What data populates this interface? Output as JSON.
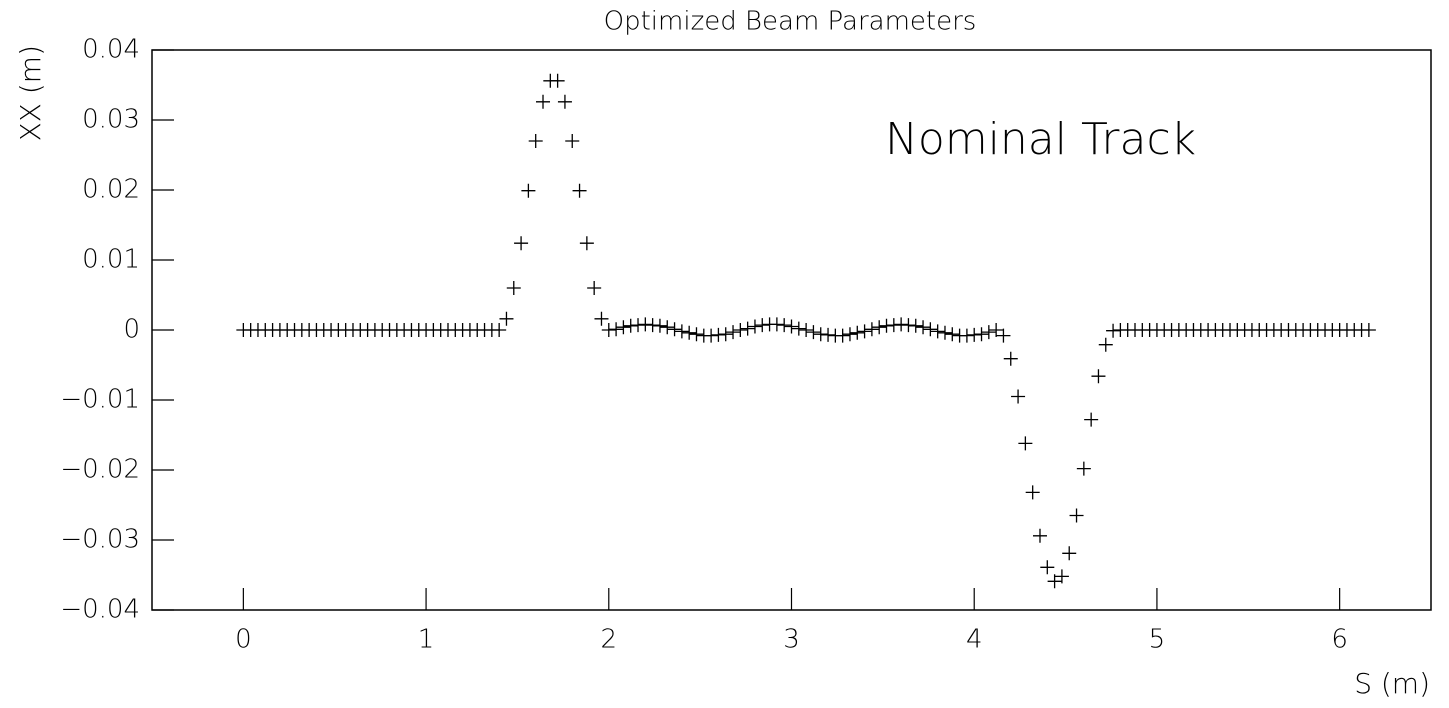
{
  "chart_data": {
    "type": "scatter",
    "title": "Optimized Beam Parameters",
    "x_label": "S (m)",
    "y_label": "XX (m)",
    "annotation": "Nominal Track",
    "color": "#000000",
    "x": [
      0,
      0.04,
      0.08,
      0.12,
      0.16,
      0.2,
      0.24,
      0.28,
      0.32,
      0.36,
      0.4,
      0.44,
      0.48,
      0.52,
      0.56,
      0.6,
      0.64,
      0.68,
      0.72,
      0.76,
      0.8,
      0.84,
      0.88,
      0.92,
      0.96,
      1,
      1.04,
      1.08,
      1.12,
      1.16,
      1.2,
      1.24,
      1.28,
      1.32,
      1.36,
      1.4,
      1.44,
      1.48,
      1.52,
      1.56,
      1.6,
      1.64,
      1.68,
      1.72,
      1.76,
      1.8,
      1.84,
      1.88,
      1.92,
      1.96,
      2,
      2.04,
      2.08,
      2.12,
      2.16,
      2.2,
      2.24,
      2.28,
      2.32,
      2.36,
      2.4,
      2.44,
      2.48,
      2.52,
      2.56,
      2.6,
      2.64,
      2.68,
      2.72,
      2.76,
      2.8,
      2.84,
      2.88,
      2.92,
      2.96,
      3,
      3.04,
      3.08,
      3.12,
      3.16,
      3.2,
      3.24,
      3.28,
      3.32,
      3.36,
      3.4,
      3.44,
      3.48,
      3.52,
      3.56,
      3.6,
      3.64,
      3.68,
      3.72,
      3.76,
      3.8,
      3.84,
      3.88,
      3.92,
      3.96,
      4,
      4.04,
      4.08,
      4.12,
      4.16,
      4.2,
      4.24,
      4.28,
      4.32,
      4.36,
      4.4,
      4.44,
      4.48,
      4.52,
      4.56,
      4.6,
      4.64,
      4.68,
      4.72,
      4.76,
      4.8,
      4.84,
      4.88,
      4.92,
      4.96,
      5,
      5.04,
      5.08,
      5.12,
      5.16,
      5.2,
      5.24,
      5.28,
      5.32,
      5.36,
      5.4,
      5.44,
      5.48,
      5.52,
      5.56,
      5.6,
      5.64,
      5.68,
      5.72,
      5.76,
      5.8,
      5.84,
      5.88,
      5.92,
      5.96,
      6,
      6.04,
      6.08,
      6.12,
      6.16
    ],
    "values": [
      0,
      0,
      0,
      0,
      0,
      0,
      0,
      0,
      0,
      0,
      0,
      0,
      0,
      0,
      0,
      0,
      0,
      0,
      0,
      0,
      0,
      0,
      0,
      0,
      0,
      0,
      0,
      0,
      0,
      0,
      0,
      0,
      0,
      0,
      0,
      0,
      0.0016,
      0.006,
      0.0124,
      0.0199,
      0.027,
      0.0326,
      0.0356,
      0.0356,
      0.0326,
      0.027,
      0.0199,
      0.0124,
      0.006,
      0.0016,
      0,
      0.0001,
      0.0004,
      0.0006,
      0.0007,
      0.0008,
      0.0007,
      0.0006,
      0.0004,
      0.0001,
      -0.0002,
      -0.0004,
      -0.0006,
      -0.0008,
      -0.0008,
      -0.0007,
      -0.0006,
      -0.0003,
      0,
      0.0002,
      0.0005,
      0.0007,
      0.0008,
      0.0008,
      0.0007,
      0.0005,
      0.0002,
      0,
      -0.0003,
      -0.0006,
      -0.0007,
      -0.0008,
      -0.0008,
      -0.0006,
      -0.0004,
      -0.0002,
      0.0001,
      0.0004,
      0.0006,
      0.0007,
      0.0008,
      0.0007,
      0.0006,
      0.0004,
      0.0001,
      -0.0002,
      -0.0004,
      -0.0006,
      -0.0008,
      -0.0008,
      -0.0007,
      -0.0006,
      -0.0003,
      0,
      -0.0008,
      -0.0041,
      -0.0095,
      -0.0162,
      -0.0232,
      -0.0294,
      -0.0339,
      -0.0359,
      -0.0352,
      -0.0319,
      -0.0265,
      -0.0198,
      -0.0128,
      -0.0066,
      -0.0021,
      -0.0001,
      0,
      0,
      0,
      0,
      0,
      0,
      0,
      0,
      0,
      0,
      0,
      0,
      0,
      0,
      0,
      0,
      0,
      0,
      0,
      0,
      0,
      0,
      0,
      0,
      0,
      0,
      0,
      0,
      0,
      0,
      0,
      0,
      0,
      0,
      0
    ],
    "xlim": [
      -0.5,
      6.5
    ],
    "xticks": [
      0,
      1,
      2,
      3,
      4,
      5,
      6
    ],
    "ylim": [
      -0.04,
      0.04
    ],
    "yticks": [
      {
        "value": -0.04,
        "label": "−0.04"
      },
      {
        "value": -0.03,
        "label": "−0.03"
      },
      {
        "value": -0.02,
        "label": "−0.02"
      },
      {
        "value": -0.01,
        "label": "−0.01"
      },
      0,
      0.01,
      0.02,
      0.03,
      0.04
    ]
  }
}
